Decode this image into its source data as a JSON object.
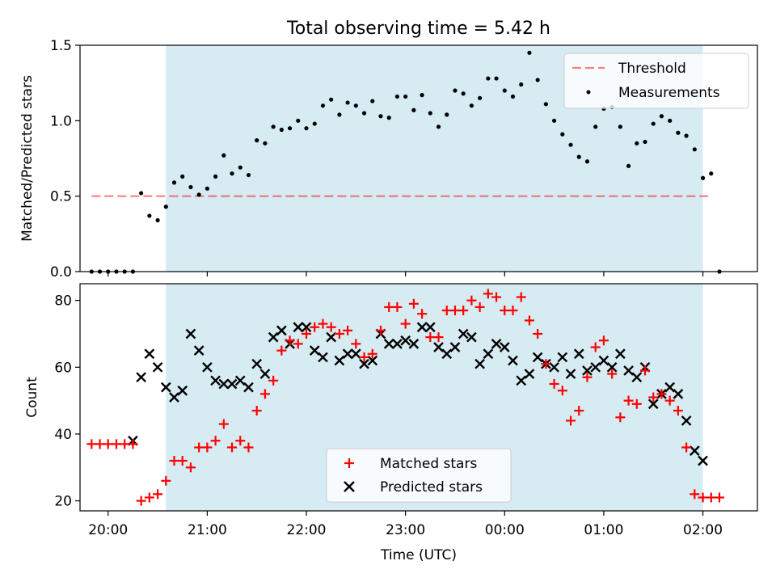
{
  "chart_data": {
    "title": "Total observing time = 5.42 h",
    "xlabel": "Time (UTC)",
    "x_range": [
      "19:43",
      "02:33"
    ],
    "x_ticks": [
      "20:00",
      "21:00",
      "22:00",
      "23:00",
      "00:00",
      "01:00",
      "02:00"
    ],
    "x_tick_labels": [
      "20:00",
      "21:00",
      "22:00",
      "23:00",
      "00:00",
      "01:00",
      "02:00"
    ],
    "observing_window": [
      "20:35",
      "02:00"
    ],
    "colors": {
      "window": "#add8e6",
      "threshold": "#ff0000",
      "measurements": "#000000",
      "matched": "#ff0000",
      "predicted": "#000000"
    },
    "panels": [
      {
        "type": "scatter",
        "ylabel": "Matched/Predicted stars",
        "ylim": [
          0,
          1.5
        ],
        "yticks": [
          "0.0",
          "0.5",
          "1.0",
          "1.5"
        ],
        "legend_position": "top-right",
        "legend": [
          "Threshold",
          "Measurements"
        ],
        "threshold": {
          "name": "Threshold",
          "value": 0.5,
          "x": [
            "19:50",
            "02:05"
          ]
        },
        "series": [
          {
            "name": "Measurements",
            "x": [
              "19:50",
              "19:55",
              "20:00",
              "20:05",
              "20:10",
              "20:15",
              "20:20",
              "20:25",
              "20:30",
              "20:35",
              "20:40",
              "20:45",
              "20:50",
              "20:55",
              "21:00",
              "21:05",
              "21:10",
              "21:15",
              "21:20",
              "21:25",
              "21:30",
              "21:35",
              "21:40",
              "21:45",
              "21:50",
              "21:55",
              "22:00",
              "22:05",
              "22:10",
              "22:15",
              "22:20",
              "22:25",
              "22:30",
              "22:35",
              "22:40",
              "22:45",
              "22:50",
              "22:55",
              "23:00",
              "23:05",
              "23:10",
              "23:15",
              "23:20",
              "23:25",
              "23:30",
              "23:35",
              "23:40",
              "23:45",
              "23:50",
              "23:55",
              "00:00",
              "00:05",
              "00:10",
              "00:15",
              "00:20",
              "00:25",
              "00:30",
              "00:35",
              "00:40",
              "00:45",
              "00:50",
              "00:55",
              "01:00",
              "01:05",
              "01:10",
              "01:15",
              "01:20",
              "01:25",
              "01:30",
              "01:35",
              "01:40",
              "01:45",
              "01:50",
              "01:55",
              "02:00",
              "02:05",
              "02:10"
            ],
            "y": [
              0,
              0,
              0,
              0,
              0,
              0,
              0.52,
              0.37,
              0.34,
              0.43,
              0.59,
              0.63,
              0.56,
              0.51,
              0.55,
              0.63,
              0.77,
              0.65,
              0.69,
              0.64,
              0.87,
              0.85,
              0.96,
              0.94,
              0.95,
              1.0,
              0.95,
              0.98,
              1.1,
              1.14,
              1.04,
              1.12,
              1.1,
              1.05,
              1.13,
              1.03,
              1.02,
              1.16,
              1.16,
              1.07,
              1.17,
              1.05,
              0.96,
              1.04,
              1.2,
              1.18,
              1.1,
              1.15,
              1.28,
              1.28,
              1.2,
              1.16,
              1.24,
              1.45,
              1.27,
              1.11,
              1.0,
              0.91,
              0.84,
              0.76,
              0.73,
              0.96,
              1.08,
              1.09,
              0.96,
              0.7,
              0.85,
              0.86,
              0.98,
              1.03,
              1.0,
              0.92,
              0.9,
              0.81,
              0.62,
              0.65,
              0.0
            ]
          }
        ]
      },
      {
        "type": "scatter",
        "ylabel": "Count",
        "ylim": [
          17,
          85
        ],
        "yticks": [
          "20",
          "40",
          "60",
          "80"
        ],
        "legend_position": "bottom-center",
        "legend": [
          "Matched stars",
          "Predicted stars"
        ],
        "series": [
          {
            "name": "Matched stars",
            "x": [
              "19:50",
              "19:55",
              "20:00",
              "20:05",
              "20:10",
              "20:15",
              "20:20",
              "20:25",
              "20:30",
              "20:35",
              "20:40",
              "20:45",
              "20:50",
              "20:55",
              "21:00",
              "21:05",
              "21:10",
              "21:15",
              "21:20",
              "21:25",
              "21:30",
              "21:35",
              "21:40",
              "21:45",
              "21:50",
              "21:55",
              "22:00",
              "22:05",
              "22:10",
              "22:15",
              "22:20",
              "22:25",
              "22:30",
              "22:35",
              "22:40",
              "22:45",
              "22:50",
              "22:55",
              "23:00",
              "23:05",
              "23:10",
              "23:15",
              "23:20",
              "23:25",
              "23:30",
              "23:35",
              "23:40",
              "23:45",
              "23:50",
              "23:55",
              "00:00",
              "00:05",
              "00:10",
              "00:15",
              "00:20",
              "00:25",
              "00:30",
              "00:35",
              "00:40",
              "00:45",
              "00:50",
              "00:55",
              "01:00",
              "01:05",
              "01:10",
              "01:15",
              "01:20",
              "01:25",
              "01:30",
              "01:35",
              "01:40",
              "01:45",
              "01:50",
              "01:55",
              "02:00",
              "02:05",
              "02:10"
            ],
            "y": [
              37,
              37,
              37,
              37,
              37,
              37,
              20,
              21,
              22,
              26,
              32,
              32,
              30,
              36,
              36,
              38,
              43,
              36,
              38,
              36,
              47,
              52,
              56,
              65,
              68,
              67,
              70,
              72,
              73,
              72,
              70,
              71,
              67,
              63,
              64,
              71,
              78,
              78,
              73,
              79,
              76,
              69,
              69,
              77,
              77,
              77,
              80,
              78,
              82,
              81,
              77,
              77,
              81,
              74,
              70,
              61,
              55,
              53,
              44,
              47,
              57,
              66,
              68,
              58,
              45,
              50,
              49,
              59,
              51,
              52,
              50,
              47,
              36,
              22,
              21,
              21,
              21
            ]
          },
          {
            "name": "Predicted stars",
            "x": [
              "20:15",
              "20:20",
              "20:25",
              "20:30",
              "20:35",
              "20:40",
              "20:45",
              "20:50",
              "20:55",
              "21:00",
              "21:05",
              "21:10",
              "21:15",
              "21:20",
              "21:25",
              "21:30",
              "21:35",
              "21:40",
              "21:45",
              "21:50",
              "21:55",
              "22:00",
              "22:05",
              "22:10",
              "22:15",
              "22:20",
              "22:25",
              "22:30",
              "22:35",
              "22:40",
              "22:45",
              "22:50",
              "22:55",
              "23:00",
              "23:05",
              "23:10",
              "23:15",
              "23:20",
              "23:25",
              "23:30",
              "23:35",
              "23:40",
              "23:45",
              "23:50",
              "23:55",
              "00:00",
              "00:05",
              "00:10",
              "00:15",
              "00:20",
              "00:25",
              "00:30",
              "00:35",
              "00:40",
              "00:45",
              "00:50",
              "00:55",
              "01:00",
              "01:05",
              "01:10",
              "01:15",
              "01:20",
              "01:25",
              "01:30",
              "01:35",
              "01:40",
              "01:45",
              "01:50",
              "01:55",
              "02:00"
            ],
            "y": [
              38,
              57,
              64,
              60,
              54,
              51,
              53,
              70,
              65,
              60,
              56,
              55,
              55,
              56,
              54,
              61,
              58,
              69,
              71,
              67,
              72,
              72,
              65,
              63,
              69,
              62,
              64,
              64,
              61,
              62,
              70,
              67,
              67,
              68,
              67,
              72,
              72,
              66,
              64,
              66,
              70,
              69,
              61,
              64,
              67,
              66,
              62,
              56,
              58,
              63,
              61,
              60,
              63,
              58,
              64,
              59,
              60,
              62,
              60,
              64,
              59,
              57,
              60,
              49,
              52,
              54,
              52,
              44,
              35,
              32
            ]
          }
        ]
      }
    ]
  }
}
